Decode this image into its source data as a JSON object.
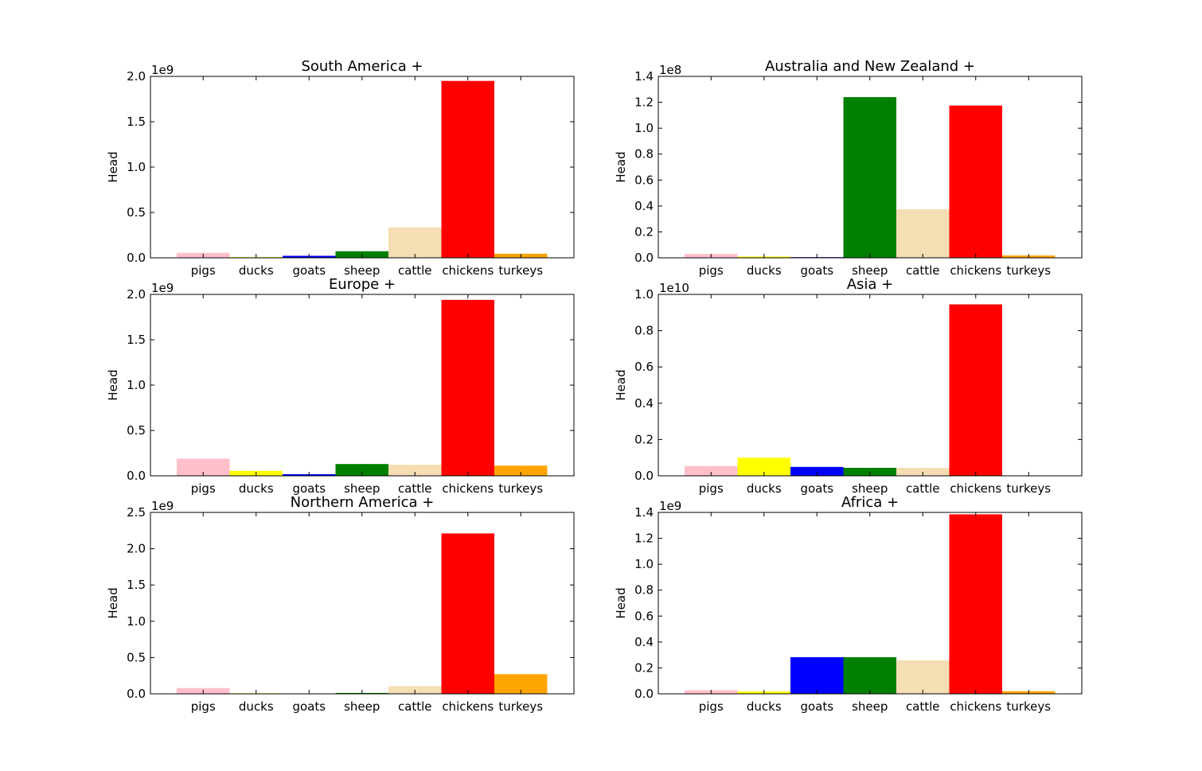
{
  "chart_data": [
    {
      "type": "bar",
      "title": "South America +",
      "ylabel": "Head",
      "ylim": [
        0,
        2000000000
      ],
      "y_multiplier": "1e9",
      "yticks": [
        "0.0",
        "0.5",
        "1.0",
        "1.5",
        "2.0"
      ],
      "categories": [
        "pigs",
        "ducks",
        "goats",
        "sheep",
        "cattle",
        "chickens",
        "turkeys"
      ],
      "values": [
        55000000,
        8000000,
        22000000,
        72000000,
        335000000,
        1950000000,
        45000000
      ]
    },
    {
      "type": "bar",
      "title": "Australia and New Zealand +",
      "ylabel": "Head",
      "ylim": [
        0,
        140000000
      ],
      "y_multiplier": "1e8",
      "yticks": [
        "0.0",
        "0.2",
        "0.4",
        "0.6",
        "0.8",
        "1.0",
        "1.2",
        "1.4"
      ],
      "categories": [
        "pigs",
        "ducks",
        "goats",
        "sheep",
        "cattle",
        "chickens",
        "turkeys"
      ],
      "values": [
        3000000,
        1000000,
        500000,
        124000000,
        37500000,
        117500000,
        1800000
      ]
    },
    {
      "type": "bar",
      "title": "Europe +",
      "ylabel": "Head",
      "ylim": [
        0,
        2000000000
      ],
      "y_multiplier": "1e9",
      "yticks": [
        "0.0",
        "0.5",
        "1.0",
        "1.5",
        "2.0"
      ],
      "categories": [
        "pigs",
        "ducks",
        "goats",
        "sheep",
        "cattle",
        "chickens",
        "turkeys"
      ],
      "values": [
        190000000,
        55000000,
        18000000,
        130000000,
        122000000,
        1940000000,
        112000000
      ]
    },
    {
      "type": "bar",
      "title": "Asia +",
      "ylabel": "Head",
      "ylim": [
        0,
        10000000000
      ],
      "y_multiplier": "1e10",
      "yticks": [
        "0.0",
        "0.2",
        "0.4",
        "0.6",
        "0.8",
        "1.0"
      ],
      "categories": [
        "pigs",
        "ducks",
        "goats",
        "sheep",
        "cattle",
        "chickens",
        "turkeys"
      ],
      "values": [
        540000000,
        1000000000,
        490000000,
        440000000,
        440000000,
        9450000000,
        5000000
      ]
    },
    {
      "type": "bar",
      "title": "Northern America +",
      "ylabel": "Head",
      "ylim": [
        0,
        2500000000
      ],
      "y_multiplier": "1e9",
      "yticks": [
        "0.0",
        "0.5",
        "1.0",
        "1.5",
        "2.0",
        "2.5"
      ],
      "categories": [
        "pigs",
        "ducks",
        "goats",
        "sheep",
        "cattle",
        "chickens",
        "turkeys"
      ],
      "values": [
        80000000,
        8000000,
        3000000,
        12000000,
        105000000,
        2210000000,
        270000000
      ]
    },
    {
      "type": "bar",
      "title": "Africa +",
      "ylabel": "Head",
      "ylim": [
        0,
        1400000000
      ],
      "y_multiplier": "1e9",
      "yticks": [
        "0.0",
        "0.2",
        "0.4",
        "0.6",
        "0.8",
        "1.0",
        "1.2",
        "1.4"
      ],
      "categories": [
        "pigs",
        "ducks",
        "goats",
        "sheep",
        "cattle",
        "chickens",
        "turkeys"
      ],
      "values": [
        28000000,
        18000000,
        283000000,
        283000000,
        258000000,
        1385000000,
        20000000
      ]
    }
  ],
  "colors": {
    "pigs": "#ffc0cb",
    "ducks": "#ffff00",
    "goats": "#0000ff",
    "sheep": "#008000",
    "cattle": "#f5deb3",
    "chickens": "#ff0000",
    "turkeys": "#ffa500"
  }
}
